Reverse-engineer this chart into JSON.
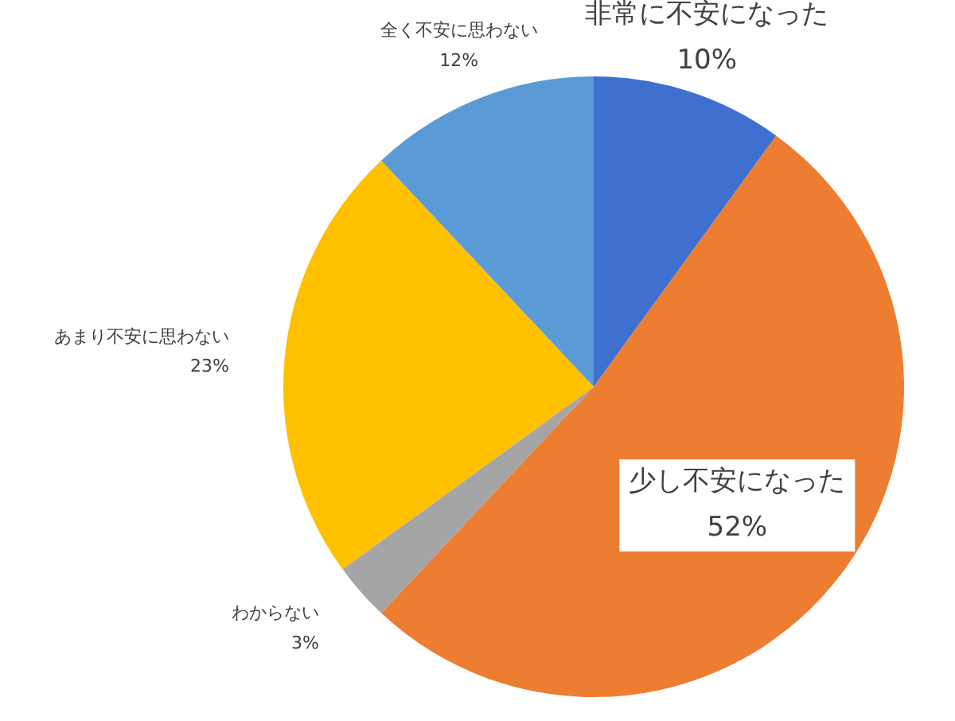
{
  "chart_data": {
    "type": "pie",
    "categories": [
      "非常に不安になった",
      "少し不安になった",
      "わからない",
      "あまり不安に思わない",
      "全く不安に思わない"
    ],
    "values": [
      10,
      52,
      3,
      23,
      12
    ],
    "value_labels": [
      "10%",
      "52%",
      "3%",
      "23%",
      "12%"
    ],
    "colors": [
      "#3f6fcf",
      "#ed7d31",
      "#a5a5a5",
      "#ffc000",
      "#5b9bd5"
    ],
    "legend": false
  }
}
